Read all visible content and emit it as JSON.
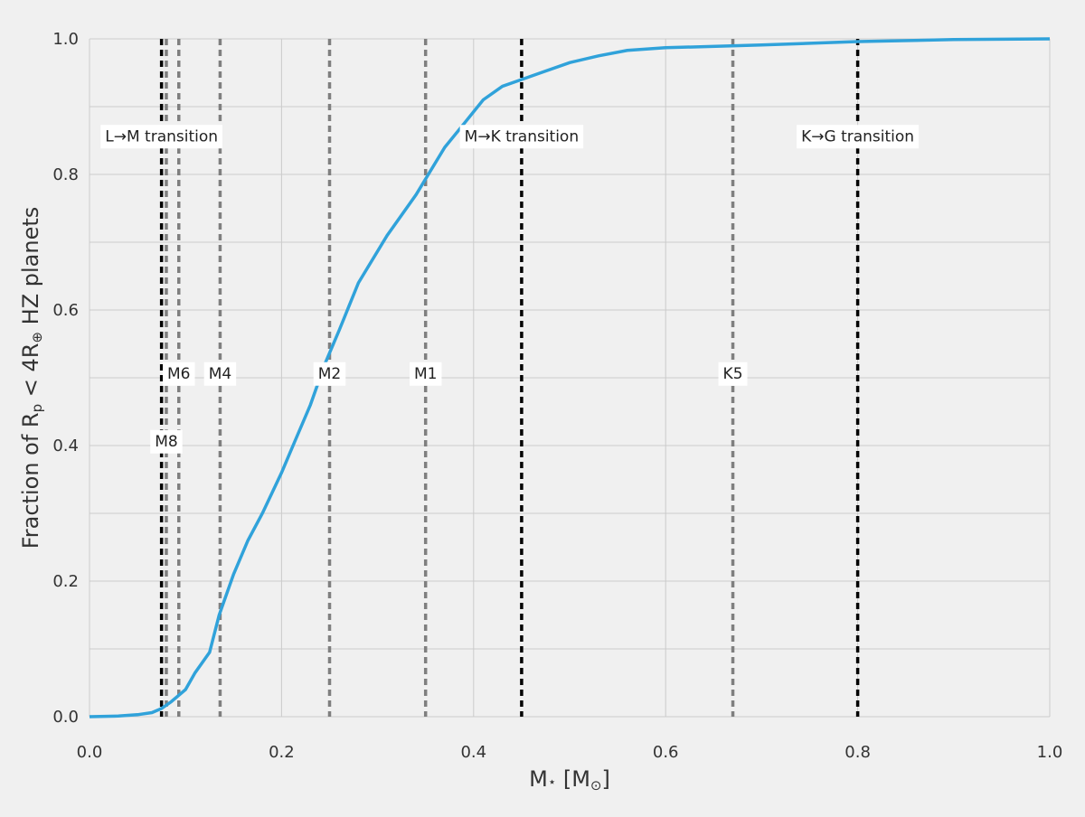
{
  "chart_data": {
    "type": "line",
    "xlabel": [
      "M",
      "⋆",
      " [M",
      "⊙",
      "]"
    ],
    "ylabel": [
      "Fraction of R",
      "p",
      " < 4R",
      "⊕",
      " HZ planets"
    ],
    "xlim": [
      0.0,
      1.0
    ],
    "ylim": [
      0.0,
      1.0
    ],
    "xticks": [
      {
        "value": 0,
        "label": "0.0"
      },
      0.2,
      0.4,
      0.6,
      0.8,
      {
        "value": 1,
        "label": "1.0"
      }
    ],
    "yticks": [
      {
        "value": 0,
        "label": "0.0"
      },
      0.2,
      0.4,
      0.6,
      0.8,
      {
        "value": 1,
        "label": "1.0"
      }
    ],
    "yminor": [
      0.1,
      0.3,
      0.5,
      0.7,
      0.9
    ],
    "grid": true,
    "series": [
      {
        "color": "#30a2da",
        "x": [
          0,
          0.03,
          0.05,
          0.065,
          0.075,
          0.085,
          0.1,
          0.11,
          0.125,
          0.135,
          0.15,
          0.165,
          0.18,
          0.2,
          0.215,
          0.23,
          0.245,
          0.26,
          0.28,
          0.31,
          0.34,
          0.37,
          0.39,
          0.41,
          0.43,
          0.45,
          0.47,
          0.5,
          0.53,
          0.56,
          0.6,
          0.7,
          0.8,
          0.9,
          1.0
        ],
        "values": [
          0,
          0.001,
          0.003,
          0.006,
          0.012,
          0.022,
          0.04,
          0.065,
          0.095,
          0.15,
          0.21,
          0.26,
          0.3,
          0.36,
          0.41,
          0.46,
          0.52,
          0.57,
          0.64,
          0.71,
          0.77,
          0.84,
          0.875,
          0.91,
          0.93,
          0.94,
          0.95,
          0.965,
          0.975,
          0.983,
          0.987,
          0.991,
          0.996,
          0.999,
          1.0
        ]
      }
    ],
    "vlines": [
      {
        "x": 0.075,
        "label": "L→M transition",
        "color": "#000000"
      },
      {
        "x": 0.08,
        "label": "M8",
        "color": "#7f7f7f"
      },
      {
        "x": 0.093,
        "label": "M6",
        "color": "#7f7f7f"
      },
      {
        "x": 0.136,
        "label": "M4",
        "color": "#7f7f7f"
      },
      {
        "x": 0.25,
        "label": "M2",
        "color": "#7f7f7f"
      },
      {
        "x": 0.35,
        "label": "M1",
        "color": "#7f7f7f"
      },
      {
        "x": 0.45,
        "label": "M→K transition",
        "color": "#000000"
      },
      {
        "x": 0.67,
        "label": "K5",
        "color": "#7f7f7f"
      },
      {
        "x": 0.8,
        "label": "K→G transition",
        "color": "#000000"
      }
    ]
  }
}
